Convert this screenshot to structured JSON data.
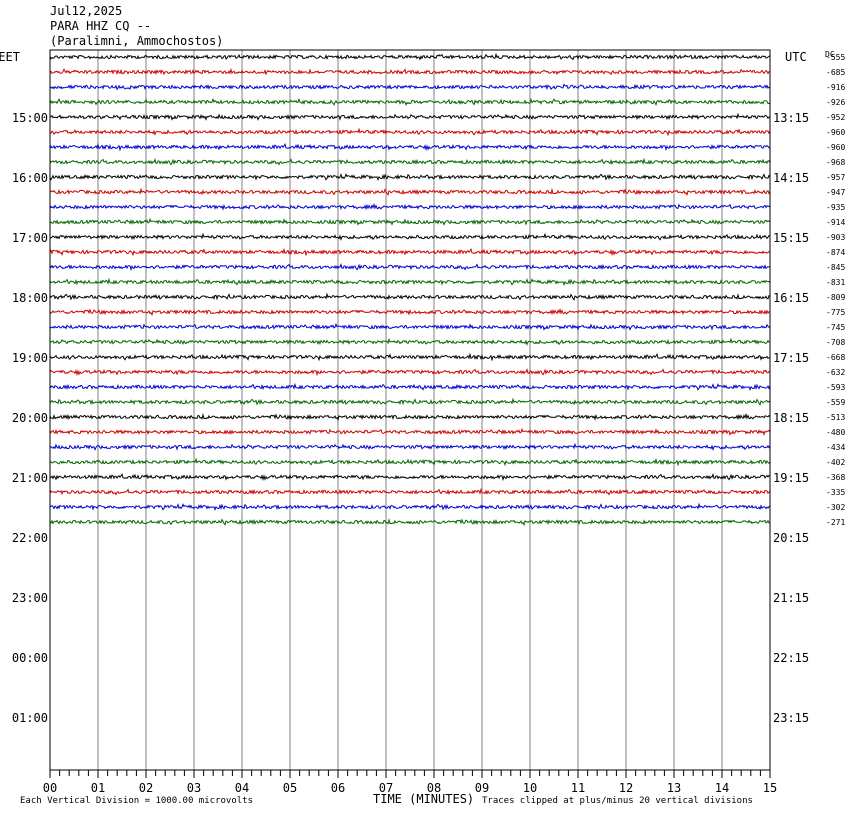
{
  "header": {
    "date": "Jul12,2025",
    "station": "PARA HHZ CQ --",
    "location": "(Paralimni, Ammochostos)"
  },
  "chart_data": {
    "type": "line",
    "left_axis_label": "EET",
    "right_axis_label": "UTC",
    "dc_label": "DC",
    "xlabel": "TIME (MINUTES)",
    "x_ticks": [
      "00",
      "01",
      "02",
      "03",
      "04",
      "05",
      "06",
      "07",
      "08",
      "09",
      "10",
      "11",
      "12",
      "13",
      "14",
      "15"
    ],
    "xlim": [
      0,
      15
    ],
    "left_time_labels": [
      "15:00",
      "16:00",
      "17:00",
      "18:00",
      "19:00",
      "20:00",
      "21:00",
      "22:00",
      "23:00",
      "00:00",
      "01:00"
    ],
    "right_time_labels": [
      "13:15",
      "14:15",
      "15:15",
      "16:15",
      "17:15",
      "18:15",
      "19:15",
      "20:15",
      "21:15",
      "22:15",
      "23:15"
    ],
    "trace_colors": [
      "#000000",
      "#cc0000",
      "#0000cc",
      "#006600"
    ],
    "dc_offsets": [
      -555,
      -685,
      -916,
      -926,
      -952,
      -960,
      -960,
      -968,
      -957,
      -947,
      -935,
      -914,
      -903,
      -874,
      -845,
      -831,
      -809,
      -775,
      -745,
      -708,
      -668,
      -632,
      -593,
      -559,
      -513,
      -480,
      -434,
      -402,
      -368,
      -335,
      -302,
      -271
    ],
    "scale_note": "Each Vertical Division = 1000.00 microvolts",
    "clip_note": "Traces clipped at plus/minus 20 vertical divisions"
  }
}
